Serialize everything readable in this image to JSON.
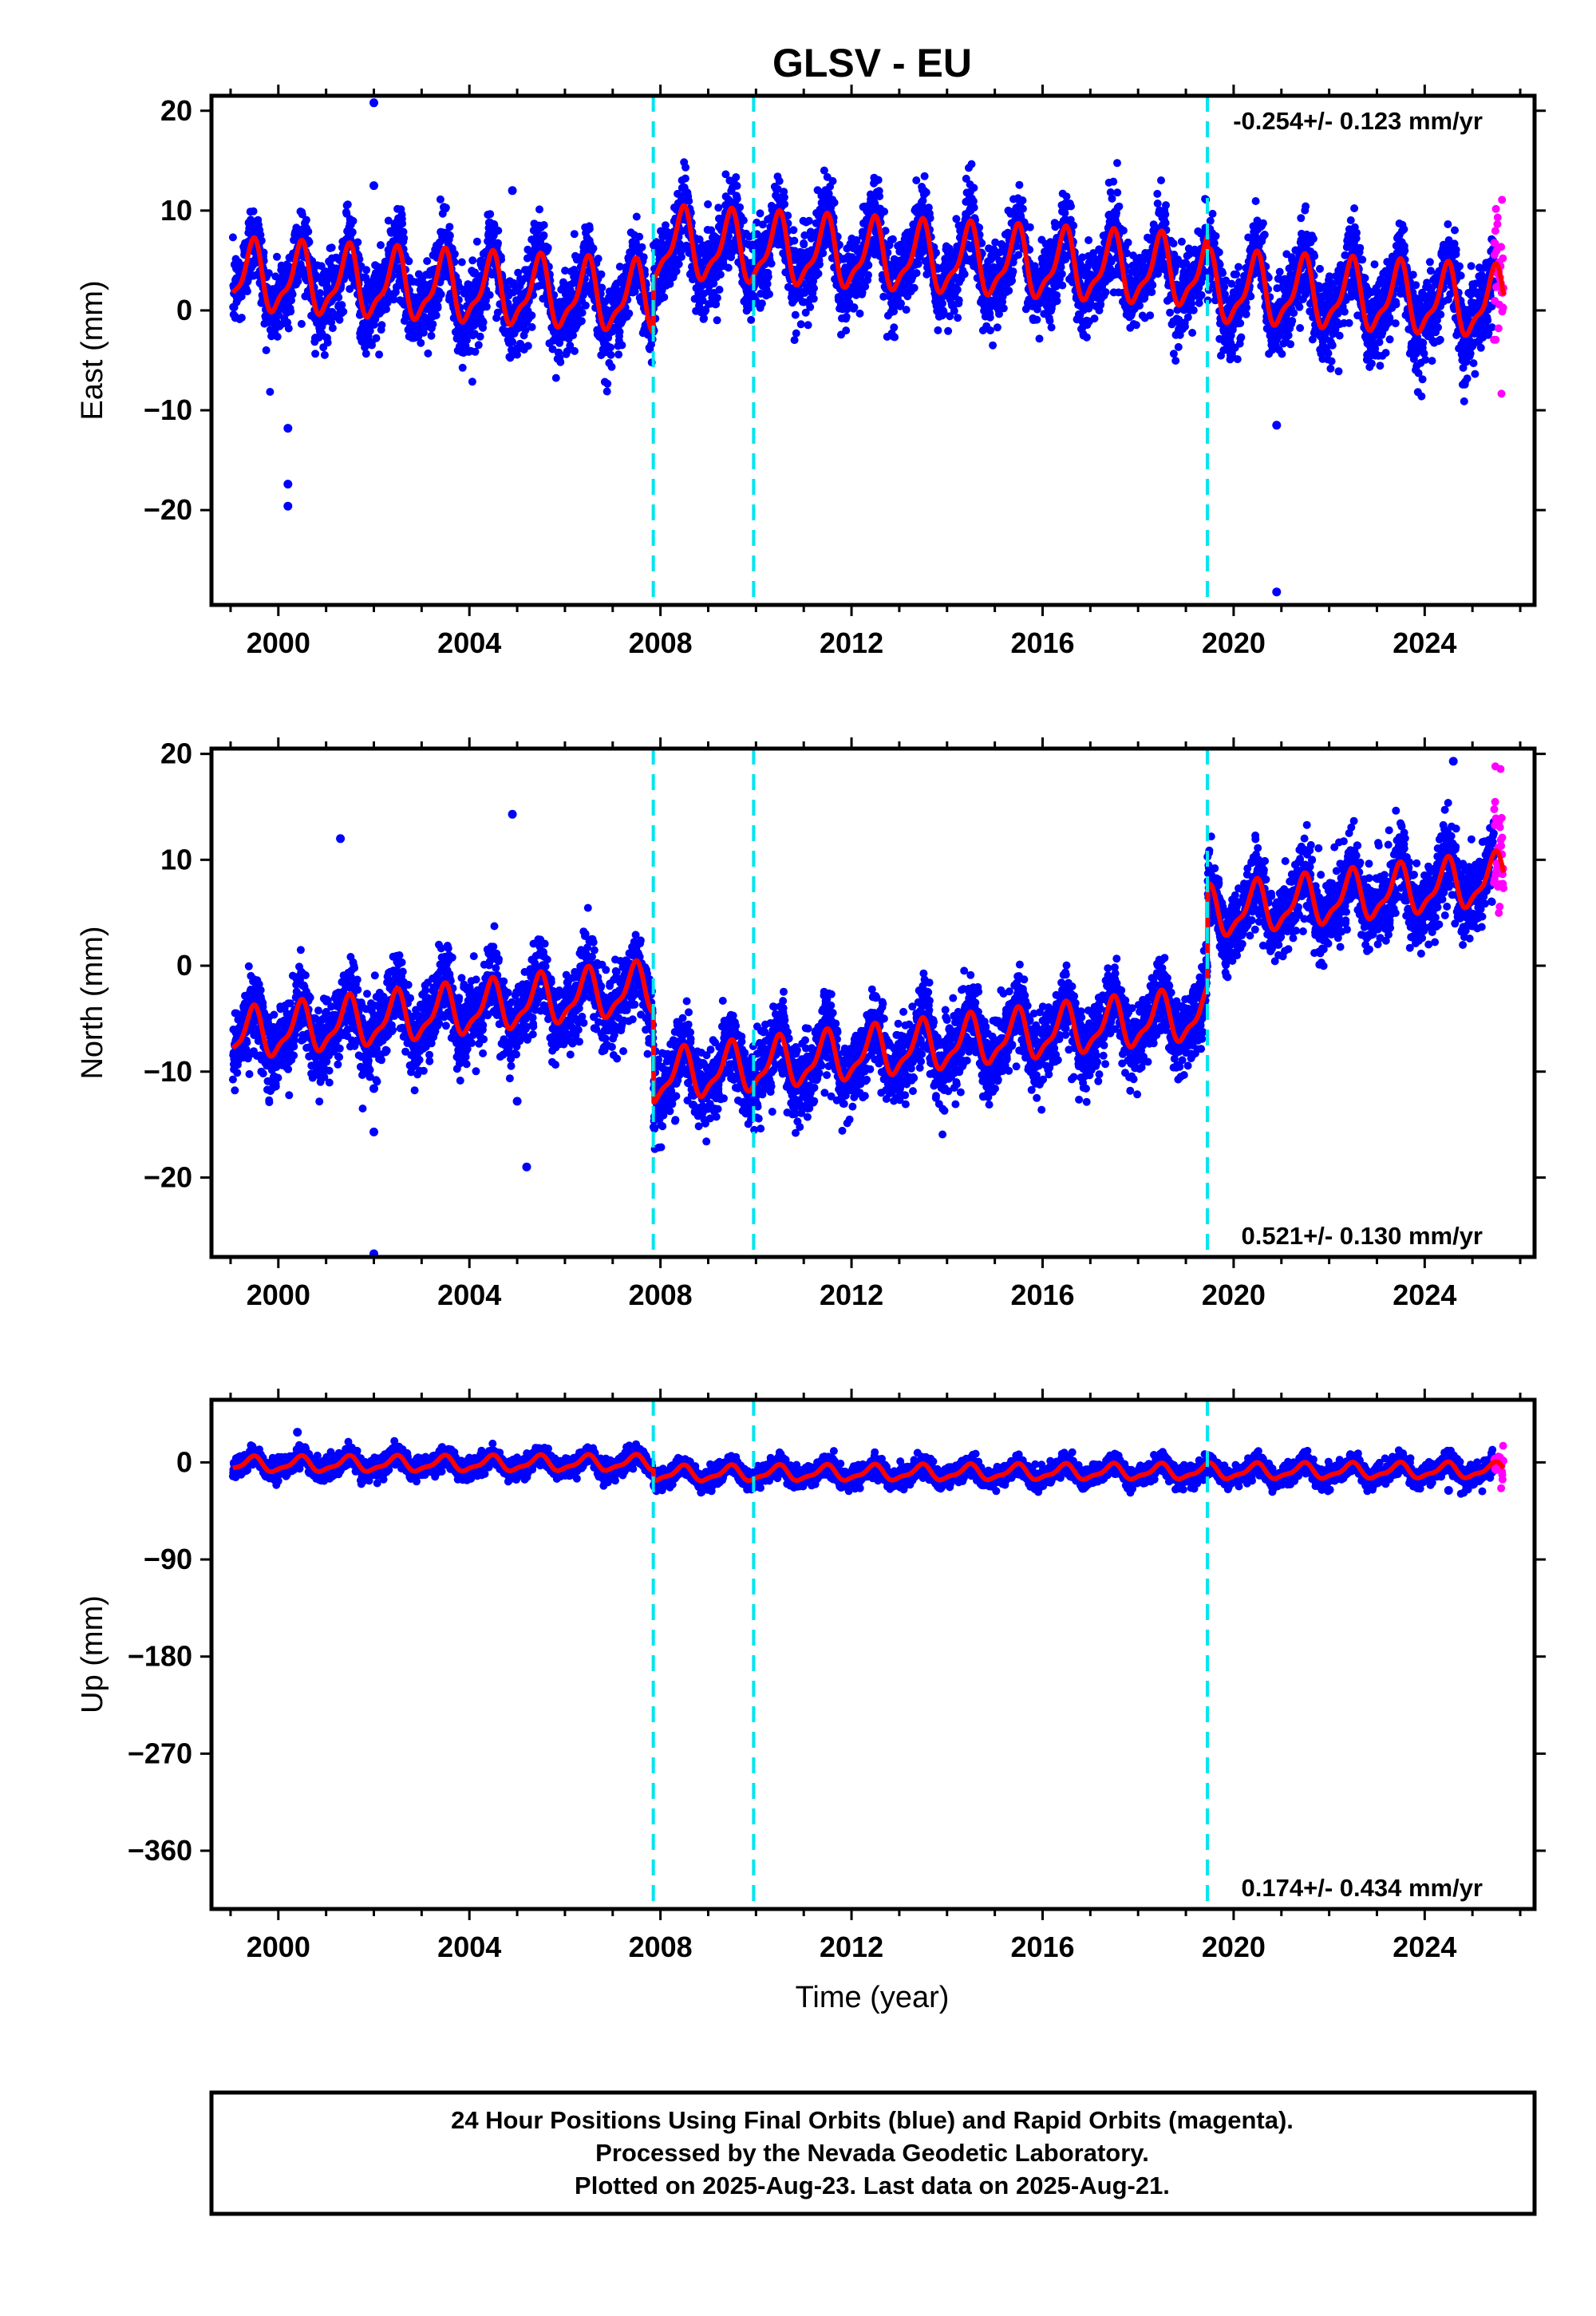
{
  "chart_data": {
    "type": "scatter",
    "title": "GLSV - EU",
    "xlabel": "Time (year)",
    "x_ticks": [
      2000,
      2004,
      2008,
      2012,
      2016,
      2020,
      2024
    ],
    "xlim": [
      1998.6,
      2026.3
    ],
    "step_epochs": [
      2007.85,
      2009.95,
      2019.45
    ],
    "data_start": 1999.05,
    "final_end": 2025.45,
    "rapid_end": 2025.65,
    "panels": [
      {
        "name": "east",
        "ylabel": "East (mm)",
        "ylim": [
          -29.5,
          21.5
        ],
        "y_ticks": [
          20,
          10,
          0,
          -10,
          -20
        ],
        "y_tick_labels": [
          "20",
          "10",
          "0",
          "−10",
          "−20"
        ],
        "rate_label": "-0.254+/- 0.123 mm/yr",
        "rate_position": "top-right",
        "velocity_mm_per_yr": -0.254,
        "offsets_mm": [
          0,
          5.5,
          0,
          -1.5
        ],
        "seasonal_amplitude_mm": 3.2,
        "scatter_mm": 2.0,
        "outliers": [
          [
            2002.0,
            20.8
          ],
          [
            2002.0,
            12.5
          ],
          [
            2004.9,
            12.0
          ],
          [
            2000.2,
            -11.8
          ],
          [
            2000.2,
            -17.4
          ],
          [
            2000.2,
            -19.6
          ],
          [
            2020.9,
            -28.2
          ],
          [
            2020.9,
            -11.5
          ]
        ]
      },
      {
        "name": "north",
        "ylabel": "North (mm)",
        "ylim": [
          -27.5,
          20.5
        ],
        "y_ticks": [
          20,
          10,
          0,
          -10,
          -20
        ],
        "y_tick_labels": [
          "20",
          "10",
          "0",
          "−10",
          "−20"
        ],
        "rate_label": "0.521+/- 0.130 mm/yr",
        "rate_position": "bottom-right",
        "velocity_mm_per_yr": 0.521,
        "offsets_mm": [
          0,
          -8.5,
          0,
          9.5
        ],
        "seasonal_amplitude_mm": 2.2,
        "scatter_mm": 1.8,
        "outliers": [
          [
            2002.0,
            -27.2
          ],
          [
            2002.0,
            -15.7
          ],
          [
            2002.0,
            -11.6
          ],
          [
            2005.2,
            -19.0
          ],
          [
            2005.0,
            -12.8
          ],
          [
            2004.9,
            14.3
          ],
          [
            2001.3,
            12.0
          ],
          [
            2024.6,
            19.3
          ]
        ]
      },
      {
        "name": "up",
        "ylabel": "Up (mm)",
        "ylim": [
          -414,
          58
        ],
        "y_ticks": [
          0,
          -90,
          -180,
          -270,
          -360
        ],
        "y_tick_labels": [
          "0",
          "−90",
          "−180",
          "−270",
          "−360"
        ],
        "rate_label": "0.174+/- 0.434 mm/yr",
        "rate_position": "bottom-right",
        "velocity_mm_per_yr": 0.174,
        "offsets_mm": [
          0,
          -10,
          0,
          0
        ],
        "seasonal_amplitude_mm": 6.5,
        "scatter_mm": 4.5,
        "outliers": [
          [
            2020.9,
            -20
          ],
          [
            2000.4,
            28
          ],
          [
            2024.5,
            -26
          ]
        ]
      }
    ],
    "series": [
      {
        "name": "Final Orbits",
        "color": "#0000ff"
      },
      {
        "name": "Rapid Orbits",
        "color": "#ff00ff"
      },
      {
        "name": "model",
        "color": "#ff0000"
      }
    ],
    "step_line_color": "#00e5ee"
  },
  "footer": {
    "line1": "24 Hour Positions Using Final Orbits (blue) and Rapid Orbits (magenta).",
    "line2": "Processed by the Nevada Geodetic Laboratory.",
    "line3": "Plotted on 2025-Aug-23. Last data on 2025-Aug-21."
  }
}
